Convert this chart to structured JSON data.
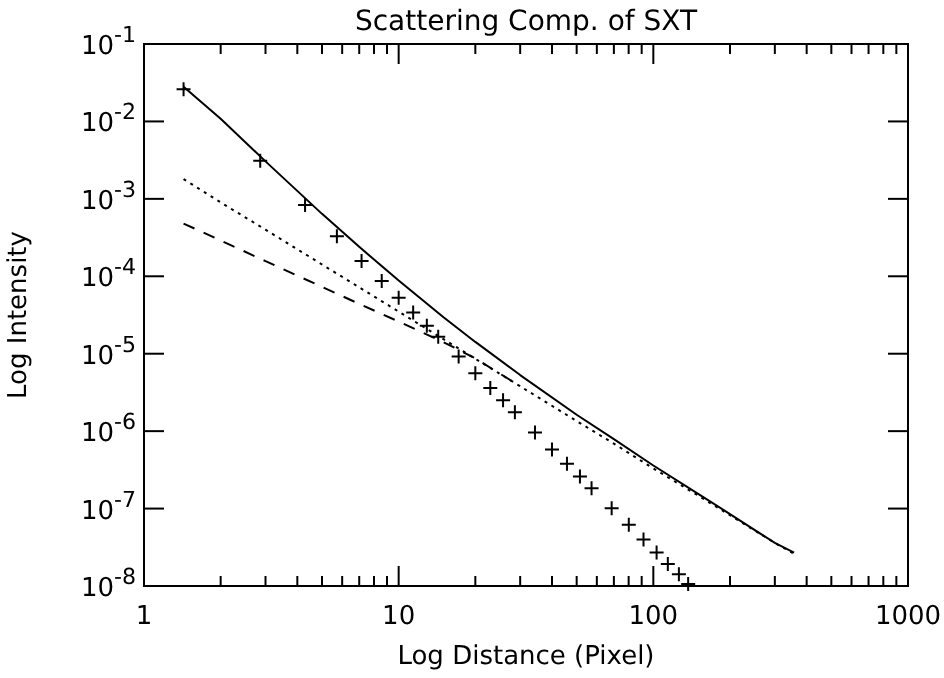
{
  "chart_data": {
    "type": "line",
    "title": "Scattering Comp. of SXT",
    "xlabel": "Log Distance (Pixel)",
    "ylabel": "Log Intensity",
    "log": "xy",
    "grid": false,
    "xlim": [
      1,
      1000
    ],
    "ylim": [
      1e-08,
      0.1
    ],
    "xticks": [
      1,
      {
        "value": 2,
        "label": null
      },
      {
        "value": 3,
        "label": null
      },
      {
        "value": 4,
        "label": null
      },
      {
        "value": 5,
        "label": null
      },
      {
        "value": 6,
        "label": null
      },
      {
        "value": 7,
        "label": null
      },
      {
        "value": 8,
        "label": null
      },
      {
        "value": 9,
        "label": null
      },
      10,
      {
        "value": 20,
        "label": null
      },
      {
        "value": 30,
        "label": null
      },
      {
        "value": 40,
        "label": null
      },
      {
        "value": 50,
        "label": null
      },
      {
        "value": 60,
        "label": null
      },
      {
        "value": 70,
        "label": null
      },
      {
        "value": 80,
        "label": null
      },
      {
        "value": 90,
        "label": null
      },
      100,
      {
        "value": 200,
        "label": null
      },
      {
        "value": 300,
        "label": null
      },
      {
        "value": 400,
        "label": null
      },
      {
        "value": 500,
        "label": null
      },
      {
        "value": 600,
        "label": null
      },
      {
        "value": 700,
        "label": null
      },
      {
        "value": 800,
        "label": null
      },
      {
        "value": 900,
        "label": null
      },
      1000
    ],
    "yticks": [
      {
        "value": 1e-08,
        "label": "10$^{-8}$"
      },
      {
        "value": 1e-07,
        "label": "10$^{-7}$"
      },
      {
        "value": 1e-06,
        "label": "10$^{-6}$"
      },
      {
        "value": 1e-05,
        "label": "10$^{-5}$"
      },
      {
        "value": 0.0001,
        "label": "10$^{-4}$"
      },
      {
        "value": 0.001,
        "label": "10$^{-3}$"
      },
      {
        "value": 0.01,
        "label": "10$^{-2}$"
      },
      {
        "value": 0.1,
        "label": "10$^{-1}$"
      }
    ],
    "series": [
      {
        "line_style": "solid",
        "color": "#000000",
        "x": [
          1.43,
          2,
          3,
          5,
          7,
          10,
          15,
          20,
          30,
          50,
          70,
          100,
          150,
          200,
          300,
          357
        ],
        "values": [
          0.028,
          0.0108,
          0.00305,
          0.00064,
          0.00024,
          8.8e-05,
          2.96e-05,
          1.42e-05,
          5.3e-06,
          1.63e-06,
          7.9e-07,
          3.6e-07,
          1.55e-07,
          8.5e-08,
          3.6e-08,
          2.7e-08
        ]
      },
      {
        "line_style": "dotted",
        "color": "#000000",
        "x": [
          1.43,
          2,
          3,
          5,
          7,
          10,
          15,
          20,
          30,
          50,
          70,
          100,
          150,
          200,
          300,
          357
        ],
        "values": [
          0.0018,
          0.0009,
          0.0004,
          0.000142,
          7.2e-05,
          3.5e-05,
          1.54e-05,
          8.6e-06,
          3.8e-06,
          1.35e-06,
          6.9e-07,
          3.3e-07,
          1.47e-07,
          8.2e-08,
          3.6e-08,
          2.6e-08
        ]
      },
      {
        "line_style": "dashed",
        "color": "#000000",
        "x": [
          1.43,
          2,
          3,
          5,
          7,
          10,
          15,
          20,
          30
        ],
        "values": [
          0.00048,
          0.00029,
          0.000157,
          7.3e-05,
          4.4e-05,
          2.6e-05,
          1.41e-05,
          8.7e-06,
          3.8e-06
        ]
      },
      {
        "type": "scatter",
        "marker": "cross",
        "color": "#000000",
        "x": [
          1.43,
          2.86,
          4.29,
          5.72,
          7.15,
          8.58,
          10.0,
          11.4,
          12.9,
          14.3,
          17.2,
          20.0,
          22.9,
          25.7,
          28.6,
          34.3,
          40.0,
          45.8,
          51.5,
          57.2,
          68.6,
          80.1,
          91.5,
          103,
          114,
          126,
          137
        ],
        "values": [
          0.026,
          0.0031,
          0.00083,
          0.00033,
          0.000158,
          8.7e-05,
          5.3e-05,
          3.4e-05,
          2.3e-05,
          1.66e-05,
          9.2e-06,
          5.6e-06,
          3.6e-06,
          2.5e-06,
          1.75e-06,
          9.6e-07,
          5.8e-07,
          3.8e-07,
          2.6e-07,
          1.83e-07,
          1.01e-07,
          6.2e-08,
          4e-08,
          2.7e-08,
          1.93e-08,
          1.42e-08,
          1.06e-08
        ]
      }
    ]
  }
}
